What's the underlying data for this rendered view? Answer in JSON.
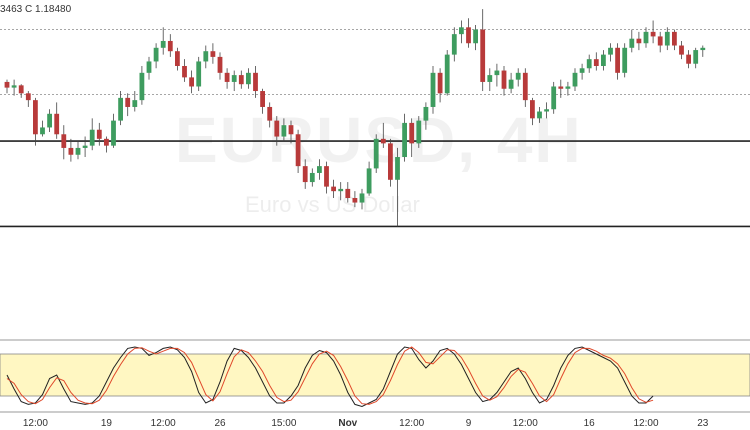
{
  "header": {
    "ohlc_text": "3463  C 1.18480"
  },
  "watermark": {
    "symbol": "EURUSD, 4H",
    "subtitle": "Euro vs US Dollar"
  },
  "colors": {
    "up": "#3e9c5f",
    "down": "#b83a3a",
    "osc_k": "#222222",
    "osc_d": "#e0492b",
    "osc_band": "#fff7c2"
  },
  "chart_data": [
    {
      "type": "candlestick",
      "title": "",
      "ylim": [
        1.16,
        1.189
      ],
      "reference_lines": [
        {
          "value": 1.1864,
          "style": "dotted"
        },
        {
          "value": 1.1807,
          "style": "dotted"
        },
        {
          "value": 1.1766,
          "style": "solid"
        },
        {
          "value": 1.1691,
          "style": "solid"
        }
      ],
      "x_ticks": [
        {
          "index": 4,
          "label": "12:00"
        },
        {
          "index": 14,
          "label": "19"
        },
        {
          "index": 22,
          "label": "12:00"
        },
        {
          "index": 30,
          "label": "26"
        },
        {
          "index": 39,
          "label": "15:00"
        },
        {
          "index": 48,
          "label": "Nov",
          "bold": true
        },
        {
          "index": 57,
          "label": "12:00"
        },
        {
          "index": 65,
          "label": "9"
        },
        {
          "index": 73,
          "label": "12:00"
        },
        {
          "index": 82,
          "label": "16"
        },
        {
          "index": 90,
          "label": "12:00"
        },
        {
          "index": 98,
          "label": "23"
        }
      ],
      "candles": [
        [
          1.1818,
          1.182,
          1.1808,
          1.1813
        ],
        [
          1.1813,
          1.182,
          1.1806,
          1.1815
        ],
        [
          1.1815,
          1.1816,
          1.1804,
          1.1808
        ],
        [
          1.1808,
          1.181,
          1.1796,
          1.1802
        ],
        [
          1.1802,
          1.1804,
          1.1762,
          1.1772
        ],
        [
          1.1772,
          1.1784,
          1.177,
          1.1778
        ],
        [
          1.1778,
          1.1794,
          1.1774,
          1.179
        ],
        [
          1.179,
          1.18,
          1.1768,
          1.1772
        ],
        [
          1.1772,
          1.178,
          1.175,
          1.176
        ],
        [
          1.176,
          1.1768,
          1.1748,
          1.1754
        ],
        [
          1.1754,
          1.1766,
          1.175,
          1.176
        ],
        [
          1.176,
          1.177,
          1.1752,
          1.1762
        ],
        [
          1.1762,
          1.1786,
          1.1758,
          1.1776
        ],
        [
          1.1776,
          1.1782,
          1.1762,
          1.1768
        ],
        [
          1.1768,
          1.177,
          1.1756,
          1.1762
        ],
        [
          1.1762,
          1.179,
          1.176,
          1.1784
        ],
        [
          1.1784,
          1.181,
          1.178,
          1.1804
        ],
        [
          1.1804,
          1.1808,
          1.1788,
          1.1796
        ],
        [
          1.1796,
          1.181,
          1.1792,
          1.1802
        ],
        [
          1.1802,
          1.1832,
          1.1798,
          1.1826
        ],
        [
          1.1826,
          1.184,
          1.182,
          1.1836
        ],
        [
          1.1836,
          1.1852,
          1.183,
          1.1848
        ],
        [
          1.1848,
          1.1866,
          1.1842,
          1.1854
        ],
        [
          1.1854,
          1.186,
          1.184,
          1.1845
        ],
        [
          1.1845,
          1.1848,
          1.1828,
          1.1832
        ],
        [
          1.1832,
          1.1838,
          1.1818,
          1.1822
        ],
        [
          1.1822,
          1.1828,
          1.1808,
          1.1814
        ],
        [
          1.1814,
          1.184,
          1.181,
          1.1836
        ],
        [
          1.1836,
          1.185,
          1.183,
          1.1845
        ],
        [
          1.1845,
          1.1852,
          1.1834,
          1.184
        ],
        [
          1.184,
          1.1844,
          1.182,
          1.1826
        ],
        [
          1.1826,
          1.183,
          1.1812,
          1.1818
        ],
        [
          1.1818,
          1.1828,
          1.181,
          1.1824
        ],
        [
          1.1824,
          1.1828,
          1.1812,
          1.1816
        ],
        [
          1.1816,
          1.183,
          1.1812,
          1.1826
        ],
        [
          1.1826,
          1.1832,
          1.1804,
          1.181
        ],
        [
          1.181,
          1.1812,
          1.179,
          1.1796
        ],
        [
          1.1796,
          1.18,
          1.1778,
          1.1784
        ],
        [
          1.1784,
          1.1788,
          1.1762,
          1.177
        ],
        [
          1.177,
          1.1786,
          1.1766,
          1.178
        ],
        [
          1.178,
          1.1784,
          1.1764,
          1.1772
        ],
        [
          1.1772,
          1.1776,
          1.1738,
          1.1744
        ],
        [
          1.1744,
          1.175,
          1.1724,
          1.173
        ],
        [
          1.173,
          1.1742,
          1.1726,
          1.1738
        ],
        [
          1.1738,
          1.175,
          1.1732,
          1.1744
        ],
        [
          1.1744,
          1.1748,
          1.172,
          1.1726
        ],
        [
          1.1726,
          1.1732,
          1.1716,
          1.1722
        ],
        [
          1.1722,
          1.173,
          1.1714,
          1.1724
        ],
        [
          1.1724,
          1.173,
          1.1712,
          1.1716
        ],
        [
          1.1716,
          1.1722,
          1.1708,
          1.1712
        ],
        [
          1.1712,
          1.1724,
          1.1706,
          1.172
        ],
        [
          1.172,
          1.1748,
          1.1718,
          1.1742
        ],
        [
          1.1742,
          1.1772,
          1.1738,
          1.1768
        ],
        [
          1.1768,
          1.1782,
          1.176,
          1.1764
        ],
        [
          1.1764,
          1.1768,
          1.1726,
          1.1732
        ],
        [
          1.1732,
          1.176,
          1.1691,
          1.1752
        ],
        [
          1.1752,
          1.179,
          1.1748,
          1.1782
        ],
        [
          1.1782,
          1.1786,
          1.1752,
          1.1764
        ],
        [
          1.1764,
          1.1788,
          1.176,
          1.1784
        ],
        [
          1.1784,
          1.18,
          1.1776,
          1.1796
        ],
        [
          1.1796,
          1.1832,
          1.179,
          1.1826
        ],
        [
          1.1826,
          1.183,
          1.18,
          1.1808
        ],
        [
          1.1808,
          1.1846,
          1.1806,
          1.1842
        ],
        [
          1.1842,
          1.1866,
          1.1836,
          1.186
        ],
        [
          1.186,
          1.1872,
          1.1852,
          1.1866
        ],
        [
          1.1866,
          1.1874,
          1.1848,
          1.1852
        ],
        [
          1.1852,
          1.1868,
          1.1846,
          1.1864
        ],
        [
          1.1864,
          1.1882,
          1.181,
          1.1818
        ],
        [
          1.1818,
          1.183,
          1.181,
          1.1824
        ],
        [
          1.1824,
          1.1834,
          1.1814,
          1.1828
        ],
        [
          1.1828,
          1.1832,
          1.1806,
          1.1812
        ],
        [
          1.1812,
          1.1826,
          1.1808,
          1.182
        ],
        [
          1.182,
          1.183,
          1.1814,
          1.1826
        ],
        [
          1.1826,
          1.183,
          1.1796,
          1.1802
        ],
        [
          1.1802,
          1.1804,
          1.178,
          1.1786
        ],
        [
          1.1786,
          1.1796,
          1.1782,
          1.1792
        ],
        [
          1.1792,
          1.18,
          1.1786,
          1.1794
        ],
        [
          1.1794,
          1.1818,
          1.179,
          1.1814
        ],
        [
          1.1814,
          1.182,
          1.1804,
          1.1812
        ],
        [
          1.1812,
          1.1818,
          1.1806,
          1.1814
        ],
        [
          1.1814,
          1.183,
          1.181,
          1.1826
        ],
        [
          1.1826,
          1.1834,
          1.182,
          1.183
        ],
        [
          1.183,
          1.1842,
          1.1826,
          1.1838
        ],
        [
          1.1838,
          1.1844,
          1.1828,
          1.1832
        ],
        [
          1.1832,
          1.1846,
          1.1828,
          1.1842
        ],
        [
          1.1842,
          1.1852,
          1.1836,
          1.1848
        ],
        [
          1.1848,
          1.1852,
          1.182,
          1.1826
        ],
        [
          1.1826,
          1.1852,
          1.1822,
          1.1848
        ],
        [
          1.1848,
          1.1864,
          1.1844,
          1.1856
        ],
        [
          1.1856,
          1.1862,
          1.1846,
          1.1852
        ],
        [
          1.1852,
          1.1866,
          1.1848,
          1.1862
        ],
        [
          1.1862,
          1.1872,
          1.1852,
          1.1858
        ],
        [
          1.1858,
          1.1862,
          1.1844,
          1.185
        ],
        [
          1.185,
          1.1866,
          1.1846,
          1.1862
        ],
        [
          1.1862,
          1.1864,
          1.1846,
          1.185
        ],
        [
          1.185,
          1.1854,
          1.1838,
          1.1842
        ],
        [
          1.1842,
          1.1846,
          1.183,
          1.1834
        ],
        [
          1.1834,
          1.1848,
          1.183,
          1.1846
        ],
        [
          1.1846,
          1.185,
          1.184,
          1.1848
        ]
      ]
    },
    {
      "type": "line",
      "title": "",
      "ylim": [
        0,
        100
      ],
      "band": [
        20,
        80
      ],
      "series": [
        {
          "values": [
            50,
            30,
            12,
            8,
            10,
            22,
            45,
            50,
            30,
            12,
            10,
            8,
            10,
            20,
            40,
            60,
            75,
            88,
            90,
            88,
            78,
            82,
            88,
            90,
            86,
            75,
            55,
            25,
            10,
            15,
            40,
            70,
            88,
            85,
            75,
            60,
            40,
            20,
            10,
            10,
            20,
            35,
            60,
            78,
            85,
            82,
            70,
            50,
            25,
            8,
            5,
            10,
            15,
            30,
            55,
            80,
            90,
            88,
            72,
            60,
            70,
            85,
            88,
            80,
            65,
            45,
            25,
            12,
            15,
            25,
            40,
            55,
            60,
            45,
            25,
            10,
            15,
            35,
            60,
            78,
            88,
            90,
            85,
            80,
            75,
            70,
            60,
            40,
            20,
            10,
            10,
            20
          ]
        },
        {
          "values": [
            45,
            38,
            22,
            12,
            9,
            15,
            32,
            46,
            42,
            25,
            14,
            10,
            9,
            14,
            28,
            48,
            65,
            80,
            88,
            89,
            84,
            80,
            84,
            88,
            88,
            82,
            68,
            45,
            22,
            13,
            26,
            52,
            76,
            86,
            82,
            70,
            55,
            35,
            18,
            12,
            14,
            26,
            46,
            66,
            80,
            84,
            78,
            62,
            42,
            20,
            9,
            8,
            12,
            22,
            42,
            65,
            84,
            90,
            82,
            68,
            66,
            76,
            86,
            85,
            75,
            58,
            38,
            20,
            14,
            19,
            32,
            48,
            58,
            54,
            38,
            20,
            12,
            22,
            45,
            66,
            82,
            88,
            88,
            84,
            78,
            74,
            66,
            52,
            32,
            16,
            11,
            14
          ]
        }
      ]
    }
  ]
}
